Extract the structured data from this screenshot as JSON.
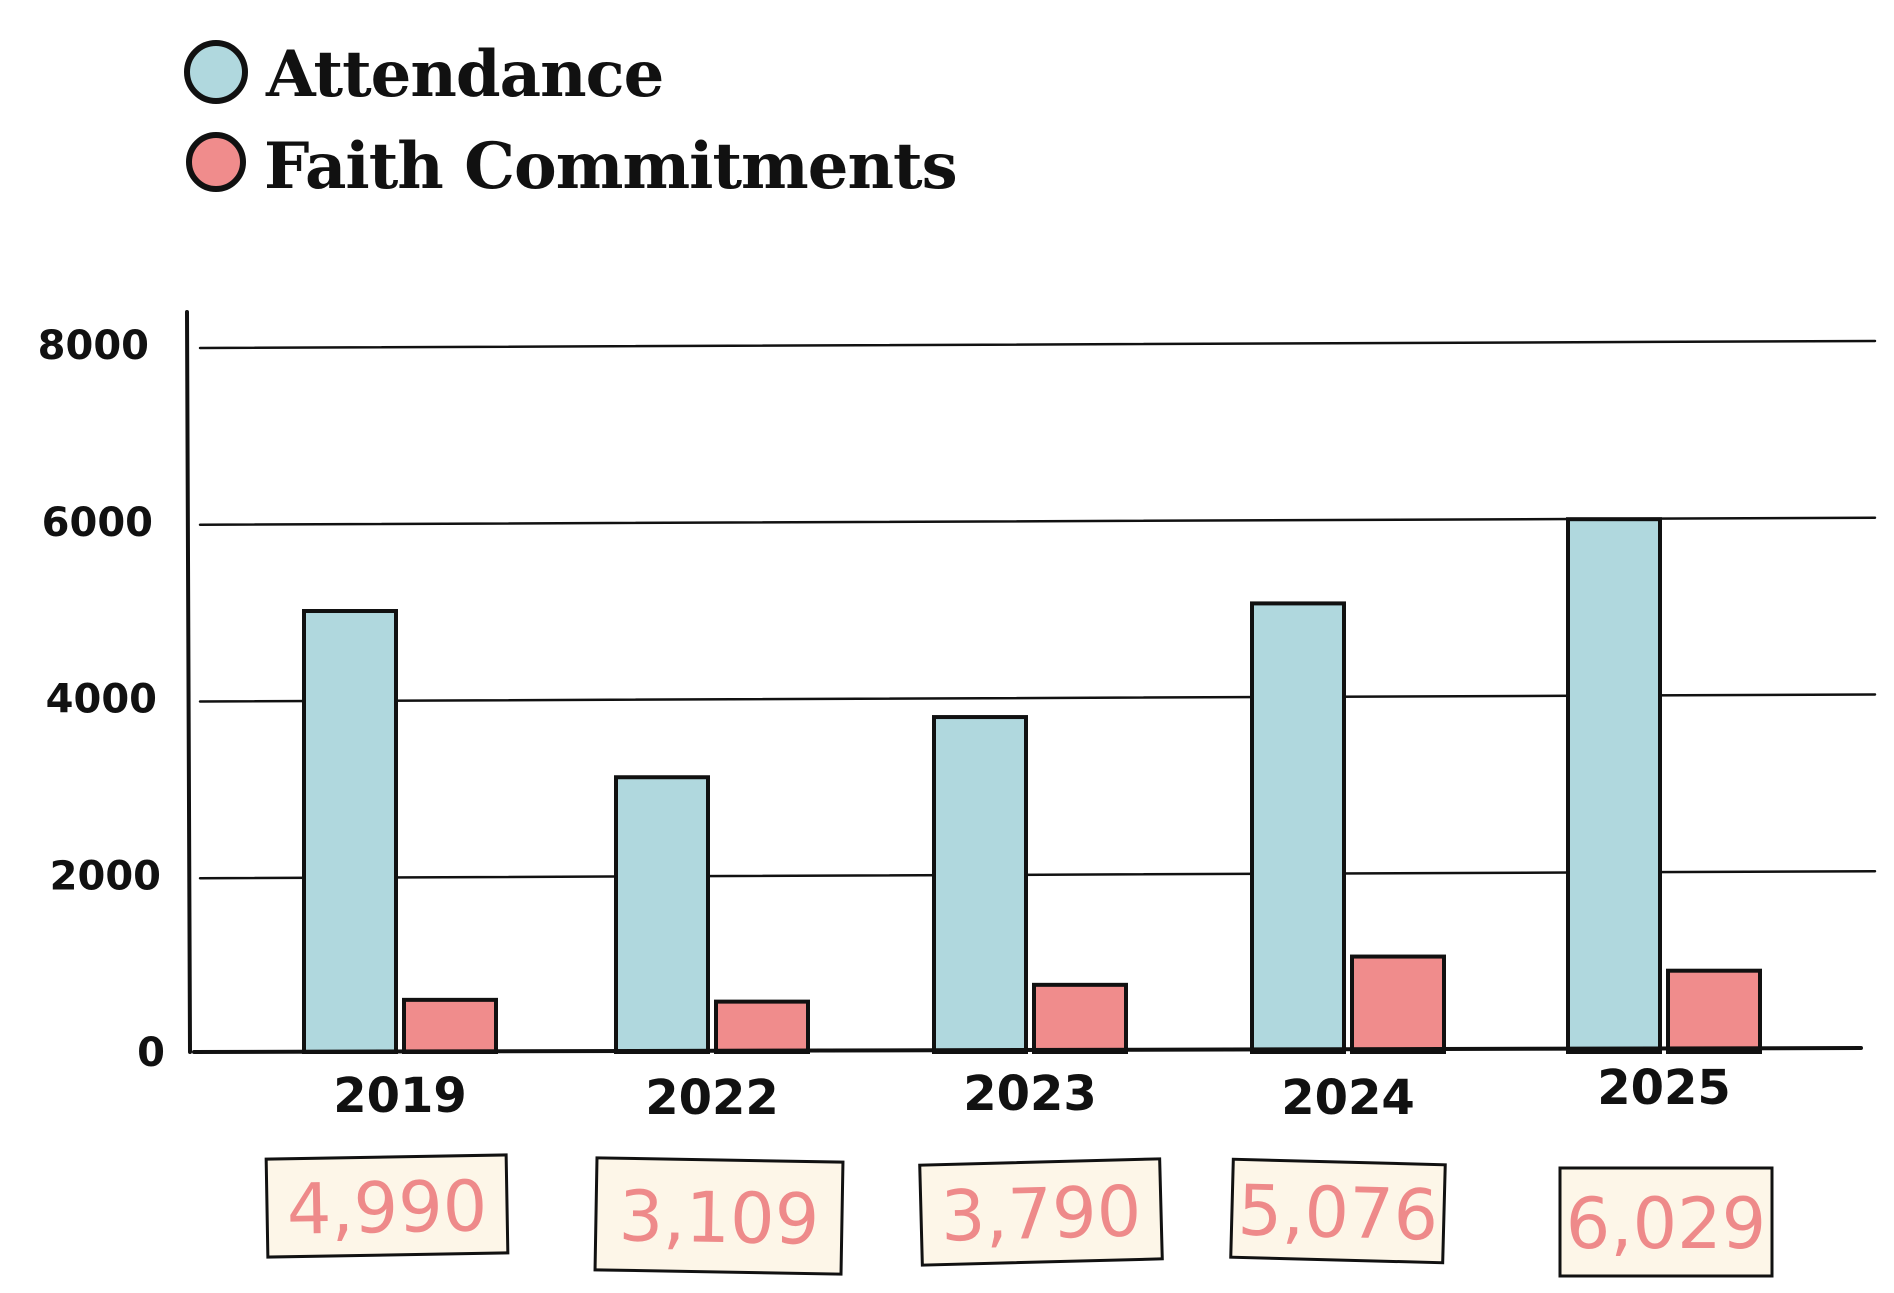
{
  "colors": {
    "attendance": "#b0d8de",
    "faith": "#f08c8c",
    "ink": "#111111",
    "box_fill": "#fdf6e8",
    "box_text": "#ee8a8a"
  },
  "chart_data": {
    "type": "bar",
    "categories": [
      "2019",
      "2022",
      "2023",
      "2024",
      "2025"
    ],
    "series": [
      {
        "name": "Attendance",
        "values": [
          4990,
          3109,
          3790,
          5076,
          6029
        ]
      },
      {
        "name": "Faith Commitments",
        "values": [
          590,
          570,
          760,
          1080,
          920
        ]
      }
    ],
    "ylim": [
      0,
      8000
    ],
    "yticks": [
      0,
      2000,
      4000,
      6000,
      8000
    ],
    "annotations": [
      "4,990",
      "3,109",
      "3,790",
      "5,076",
      "6,029"
    ],
    "grid": true,
    "legend_position": "top-left"
  }
}
